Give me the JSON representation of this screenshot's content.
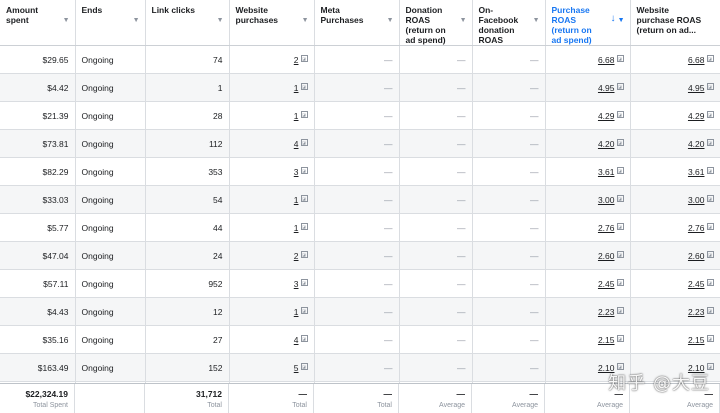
{
  "columns": [
    {
      "label": "Amount spent"
    },
    {
      "label": "Ends"
    },
    {
      "label": "Link clicks"
    },
    {
      "label": "Website purchases"
    },
    {
      "label": "Meta Purchases"
    },
    {
      "label": "Donation ROAS (return on ad spend)"
    },
    {
      "label": "On-Facebook donation ROAS"
    },
    {
      "label": "Purchase ROAS (return on ad spend)",
      "sorted": true
    },
    {
      "label": "Website purchase ROAS (return on ad..."
    }
  ],
  "rows": [
    {
      "amount": "$29.65",
      "ends": "Ongoing",
      "clicks": "74",
      "web_purchases": "2",
      "meta_purchases": "—",
      "donation_roas": "—",
      "fb_donation_roas": "—",
      "purchase_roas": "6.68",
      "web_purchase_roas": "6.68"
    },
    {
      "amount": "$4.42",
      "ends": "Ongoing",
      "clicks": "1",
      "web_purchases": "1",
      "meta_purchases": "—",
      "donation_roas": "—",
      "fb_donation_roas": "—",
      "purchase_roas": "4.95",
      "web_purchase_roas": "4.95"
    },
    {
      "amount": "$21.39",
      "ends": "Ongoing",
      "clicks": "28",
      "web_purchases": "1",
      "meta_purchases": "—",
      "donation_roas": "—",
      "fb_donation_roas": "—",
      "purchase_roas": "4.29",
      "web_purchase_roas": "4.29"
    },
    {
      "amount": "$73.81",
      "ends": "Ongoing",
      "clicks": "112",
      "web_purchases": "4",
      "meta_purchases": "—",
      "donation_roas": "—",
      "fb_donation_roas": "—",
      "purchase_roas": "4.20",
      "web_purchase_roas": "4.20"
    },
    {
      "amount": "$82.29",
      "ends": "Ongoing",
      "clicks": "353",
      "web_purchases": "3",
      "meta_purchases": "—",
      "donation_roas": "—",
      "fb_donation_roas": "—",
      "purchase_roas": "3.61",
      "web_purchase_roas": "3.61"
    },
    {
      "amount": "$33.03",
      "ends": "Ongoing",
      "clicks": "54",
      "web_purchases": "1",
      "meta_purchases": "—",
      "donation_roas": "—",
      "fb_donation_roas": "—",
      "purchase_roas": "3.00",
      "web_purchase_roas": "3.00"
    },
    {
      "amount": "$5.77",
      "ends": "Ongoing",
      "clicks": "44",
      "web_purchases": "1",
      "meta_purchases": "—",
      "donation_roas": "—",
      "fb_donation_roas": "—",
      "purchase_roas": "2.76",
      "web_purchase_roas": "2.76"
    },
    {
      "amount": "$47.04",
      "ends": "Ongoing",
      "clicks": "24",
      "web_purchases": "2",
      "meta_purchases": "—",
      "donation_roas": "—",
      "fb_donation_roas": "—",
      "purchase_roas": "2.60",
      "web_purchase_roas": "2.60"
    },
    {
      "amount": "$57.11",
      "ends": "Ongoing",
      "clicks": "952",
      "web_purchases": "3",
      "meta_purchases": "—",
      "donation_roas": "—",
      "fb_donation_roas": "—",
      "purchase_roas": "2.45",
      "web_purchase_roas": "2.45"
    },
    {
      "amount": "$4.43",
      "ends": "Ongoing",
      "clicks": "12",
      "web_purchases": "1",
      "meta_purchases": "—",
      "donation_roas": "—",
      "fb_donation_roas": "—",
      "purchase_roas": "2.23",
      "web_purchase_roas": "2.23"
    },
    {
      "amount": "$35.16",
      "ends": "Ongoing",
      "clicks": "27",
      "web_purchases": "4",
      "meta_purchases": "—",
      "donation_roas": "—",
      "fb_donation_roas": "—",
      "purchase_roas": "2.15",
      "web_purchase_roas": "2.15"
    },
    {
      "amount": "$163.49",
      "ends": "Ongoing",
      "clicks": "152",
      "web_purchases": "5",
      "meta_purchases": "—",
      "donation_roas": "—",
      "fb_donation_roas": "—",
      "purchase_roas": "2.10",
      "web_purchase_roas": "2.10"
    }
  ],
  "totals": [
    {
      "value": "$22,324.19",
      "label": "Total Spent"
    },
    {
      "value": "",
      "label": ""
    },
    {
      "value": "31,712",
      "label": "Total"
    },
    {
      "value": "—",
      "label": "Total"
    },
    {
      "value": "—",
      "label": "Total"
    },
    {
      "value": "—",
      "label": "Average"
    },
    {
      "value": "—",
      "label": "Average"
    },
    {
      "value": "—",
      "label": "Average"
    },
    {
      "value": "—",
      "label": "Average"
    }
  ],
  "watermark": "知乎 @大豆",
  "colors": {
    "accent": "#1877f2",
    "muted": "#8d949e",
    "border": "#dadde1"
  }
}
